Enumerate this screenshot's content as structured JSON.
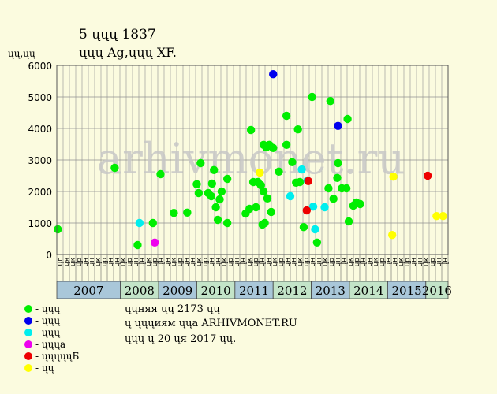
{
  "header": {
    "title": "5 ųųų 1837",
    "subtitle": "ųųų Ag,ųųų XF.",
    "unit_label": "ųų,ųų"
  },
  "watermark": "arhivmonet.ru",
  "legend": [
    {
      "label": "- ųųų",
      "color": "#00ee00"
    },
    {
      "label": "- ųųų",
      "color": "#0000ee"
    },
    {
      "label": "- ųųų",
      "color": "#00eeee"
    },
    {
      "label": "- ųųųa",
      "color": "#ee00ee"
    },
    {
      "label": "- ųųųųųБ",
      "color": "#ee0000"
    },
    {
      "label": "- ųų",
      "color": "#ffff00"
    }
  ],
  "footer": {
    "line1": "ųųняя ųų 2173 ųų",
    "line2": "ų ųųųиям ųųa ARHIVMONET.RU",
    "line3": "ųųų ų 20 ųя 2017 ųų."
  },
  "colors": {
    "plot_bg": "#fbfbdf",
    "grid": "#909090",
    "year_even_bg": "#a9c7d9",
    "year_odd_bg": "#c3e4c8"
  },
  "chart_data": {
    "type": "scatter",
    "ylim": [
      0,
      6000
    ],
    "yticks": [
      "0",
      "1000",
      "2000",
      "3000",
      "4000",
      "5000",
      "6000"
    ],
    "xlim": [
      2006.333,
      2016.583
    ],
    "grid": true,
    "month_labels": [
      "ųг",
      "ųя",
      "ųк",
      "ųр",
      "ųн",
      "ųн",
      "ųк",
      "ųр",
      "ųн",
      "ųн",
      "ųк",
      "ųр",
      "ųн",
      "ųн",
      "ųк",
      "ųр",
      "ųн",
      "ųн",
      "ųк",
      "ųр",
      "ųн",
      "ųн",
      "ųк",
      "ųр",
      "ųн",
      "ųн",
      "ųк",
      "ųр",
      "ųн",
      "ųн",
      "ųк",
      "ųр",
      "ųн",
      "ųн",
      "ųк",
      "ųр",
      "ųн",
      "ųн",
      "ųк",
      "ųр",
      "ųн",
      "ųн",
      "ųк",
      "ųр",
      "ųн",
      "ųн",
      "ųк",
      "ųр",
      "ųн",
      "ųн",
      "ųк",
      "ųр",
      "ųн",
      "ųн",
      "ųк",
      "ųр",
      "ųн",
      "ųн",
      "ųк",
      "ųр",
      "ųн",
      "ųн"
    ],
    "years": [
      {
        "label": "2007",
        "start": 2006.333,
        "end": 2008.0
      },
      {
        "label": "2008",
        "start": 2008.0,
        "end": 2009.0
      },
      {
        "label": "2009",
        "start": 2009.0,
        "end": 2010.0
      },
      {
        "label": "2010",
        "start": 2010.0,
        "end": 2011.0
      },
      {
        "label": "2011",
        "start": 2011.0,
        "end": 2012.0
      },
      {
        "label": "2012",
        "start": 2012.0,
        "end": 2013.0
      },
      {
        "label": "2013",
        "start": 2013.0,
        "end": 2014.0
      },
      {
        "label": "2014",
        "start": 2014.0,
        "end": 2015.0
      },
      {
        "label": "2015",
        "start": 2015.0,
        "end": 2016.0
      },
      {
        "label": "2016",
        "start": 2016.0,
        "end": 2016.583
      }
    ],
    "series": [
      {
        "color": "#00ee00",
        "points": [
          [
            2006.36,
            800
          ],
          [
            2007.85,
            2750
          ],
          [
            2008.45,
            300
          ],
          [
            2008.85,
            1000
          ],
          [
            2009.05,
            2550
          ],
          [
            2009.4,
            1320
          ],
          [
            2009.75,
            1330
          ],
          [
            2010.0,
            2230
          ],
          [
            2010.05,
            1950
          ],
          [
            2010.1,
            2900
          ],
          [
            2010.3,
            1950
          ],
          [
            2010.38,
            1850
          ],
          [
            2010.4,
            2250
          ],
          [
            2010.45,
            2680
          ],
          [
            2010.5,
            1500
          ],
          [
            2010.55,
            1100
          ],
          [
            2010.6,
            1750
          ],
          [
            2010.65,
            2000
          ],
          [
            2010.8,
            2400
          ],
          [
            2010.8,
            1000
          ],
          [
            2011.28,
            1300
          ],
          [
            2011.38,
            1450
          ],
          [
            2011.42,
            3950
          ],
          [
            2011.48,
            2300
          ],
          [
            2011.55,
            1500
          ],
          [
            2011.6,
            2300
          ],
          [
            2011.68,
            2200
          ],
          [
            2011.72,
            950
          ],
          [
            2011.75,
            2000
          ],
          [
            2011.75,
            3480
          ],
          [
            2011.78,
            1000
          ],
          [
            2011.82,
            3400
          ],
          [
            2011.85,
            1780
          ],
          [
            2011.9,
            3480
          ],
          [
            2011.95,
            1350
          ],
          [
            2012.0,
            3380
          ],
          [
            2012.15,
            2630
          ],
          [
            2012.35,
            3480
          ],
          [
            2012.35,
            4400
          ],
          [
            2012.5,
            2930
          ],
          [
            2012.6,
            2280
          ],
          [
            2012.65,
            3970
          ],
          [
            2012.7,
            2300
          ],
          [
            2012.8,
            870
          ],
          [
            2013.02,
            5000
          ],
          [
            2013.15,
            380
          ],
          [
            2013.45,
            2100
          ],
          [
            2013.5,
            4870
          ],
          [
            2013.58,
            1770
          ],
          [
            2013.68,
            2430
          ],
          [
            2013.7,
            2900
          ],
          [
            2013.8,
            2100
          ],
          [
            2013.92,
            2100
          ],
          [
            2013.95,
            4300
          ],
          [
            2013.98,
            1050
          ],
          [
            2014.1,
            1550
          ],
          [
            2014.18,
            1650
          ],
          [
            2014.28,
            1600
          ]
        ]
      },
      {
        "color": "#0000ee",
        "points": [
          [
            2012.0,
            5720
          ],
          [
            2013.7,
            4080
          ]
        ]
      },
      {
        "color": "#00eeee",
        "points": [
          [
            2008.5,
            1000
          ],
          [
            2012.45,
            1850
          ],
          [
            2012.75,
            2700
          ],
          [
            2012.9,
            2350
          ],
          [
            2013.05,
            1520
          ],
          [
            2013.1,
            800
          ],
          [
            2013.35,
            1500
          ]
        ]
      },
      {
        "color": "#ee00ee",
        "points": [
          [
            2008.9,
            380
          ]
        ]
      },
      {
        "color": "#ee0000",
        "points": [
          [
            2012.88,
            1400
          ],
          [
            2012.92,
            2330
          ],
          [
            2016.05,
            2500
          ]
        ]
      },
      {
        "color": "#ffff00",
        "points": [
          [
            2011.65,
            2600
          ],
          [
            2015.12,
            620
          ],
          [
            2015.15,
            2470
          ],
          [
            2016.28,
            1220
          ],
          [
            2016.45,
            1220
          ]
        ]
      }
    ]
  }
}
